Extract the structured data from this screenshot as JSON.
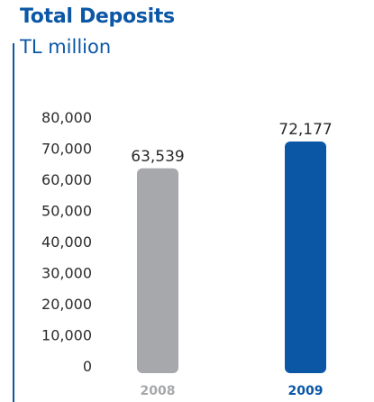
{
  "chart_data": {
    "type": "bar",
    "title": "Total Deposits",
    "subtitle": "TL million",
    "categories": [
      "2008",
      "2009"
    ],
    "values": [
      63539,
      72177
    ],
    "value_labels": [
      "63,539",
      "72,177"
    ],
    "ylim": [
      0,
      80000
    ],
    "yticks": [
      "0",
      "10,000",
      "20,000",
      "30,000",
      "40,000",
      "50,000",
      "60,000",
      "70,000",
      "80,000"
    ],
    "grid": false,
    "bar_colors": [
      "#a7a8ab",
      "#0b57a6"
    ],
    "category_label_colors": [
      "#a7a8ab",
      "#0b57a6"
    ],
    "accent_color": "#0b57a6"
  }
}
